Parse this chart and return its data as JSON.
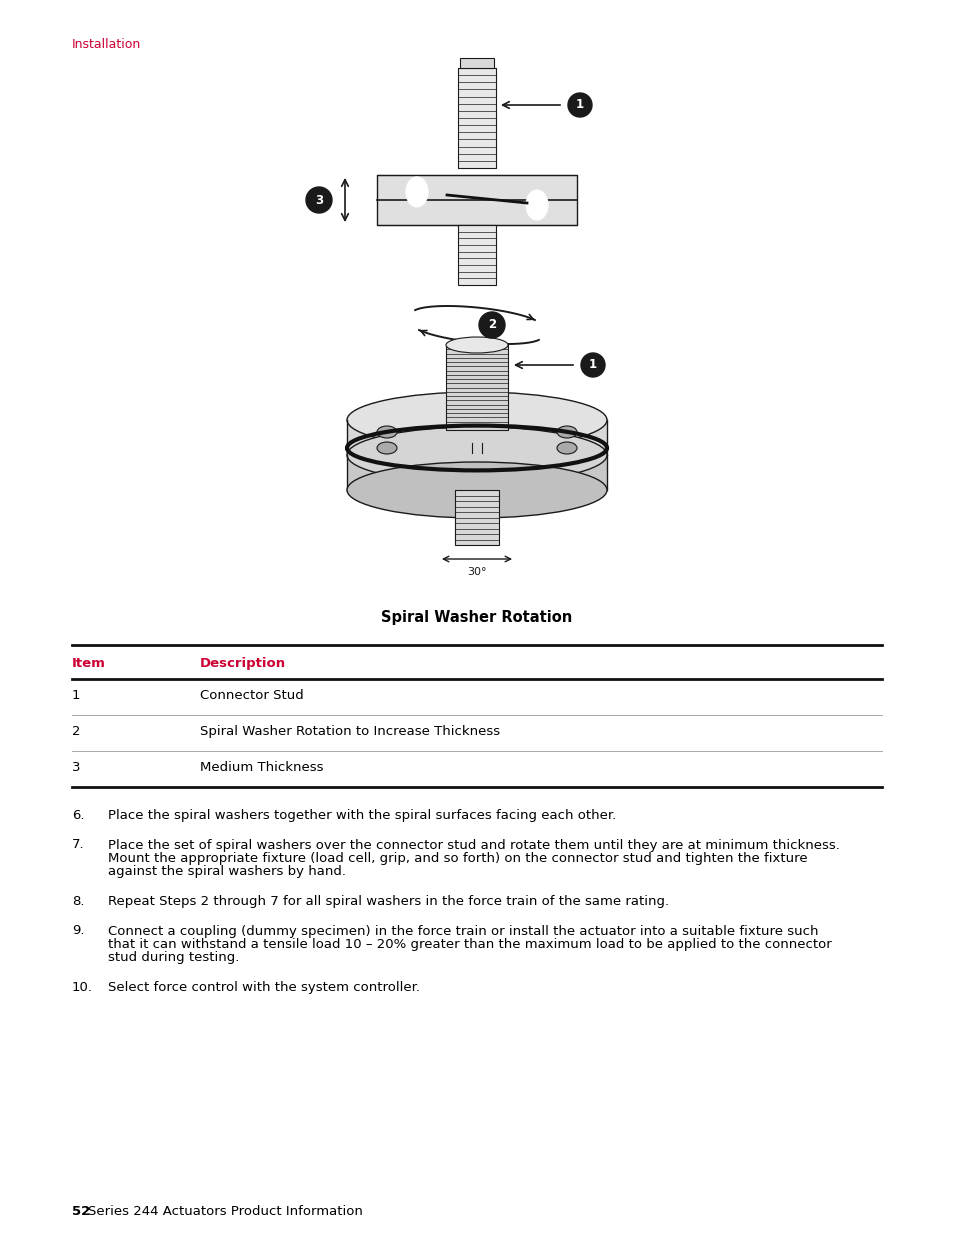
{
  "page_header": "Installation",
  "header_color": "#cc0033",
  "figure_caption": "Spiral Washer Rotation",
  "table_headers": [
    "Item",
    "Description"
  ],
  "table_header_color": "#cc0033",
  "table_rows": [
    [
      "1",
      "Connector Stud"
    ],
    [
      "2",
      "Spiral Washer Rotation to Increase Thickness"
    ],
    [
      "3",
      "Medium Thickness"
    ]
  ],
  "numbered_items": [
    {
      "num": "6.",
      "text": "Place the spiral washers together with the spiral surfaces facing each other."
    },
    {
      "num": "7.",
      "text": "Place the set of spiral washers over the connector stud and rotate them until they are at minimum thickness.\nMount the appropriate fixture (load cell, grip, and so forth) on the connector stud and tighten the fixture\nagainst the spiral washers by hand."
    },
    {
      "num": "8.",
      "text": "Repeat Steps 2 through 7 for all spiral washers in the force train of the same rating."
    },
    {
      "num": "9.",
      "text": "Connect a coupling (dummy specimen) in the force train or install the actuator into a suitable fixture such\nthat it can withstand a tensile load 10 – 20% greater than the maximum load to be applied to the connector\nstud during testing."
    },
    {
      "num": "10.",
      "text": "Select force control with the system controller."
    }
  ],
  "footer_bold": "52",
  "footer_text": "Series 244 Actuators Product Information",
  "bg_color": "#ffffff",
  "text_color": "#000000",
  "dark": "#1a1a1a"
}
